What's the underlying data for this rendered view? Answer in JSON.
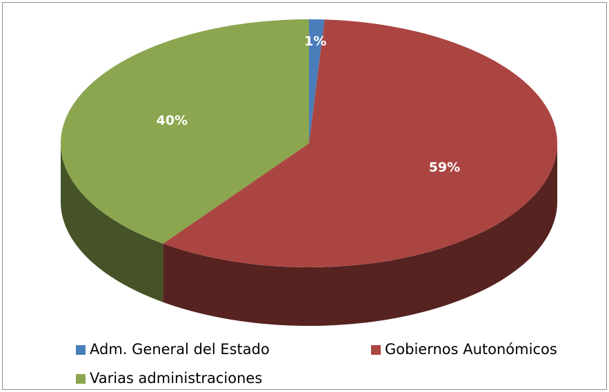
{
  "chart_data": {
    "type": "pie3d",
    "categories": [
      "Adm. General del Estado",
      "Gobiernos Autonómicos",
      "Varias administraciones"
    ],
    "values": [
      1,
      59,
      40
    ],
    "value_labels": [
      "1%",
      "59%",
      "40%"
    ],
    "colors": [
      "#4a7ebb",
      "#ab4542",
      "#8ba64f"
    ],
    "legend": "bottom"
  }
}
